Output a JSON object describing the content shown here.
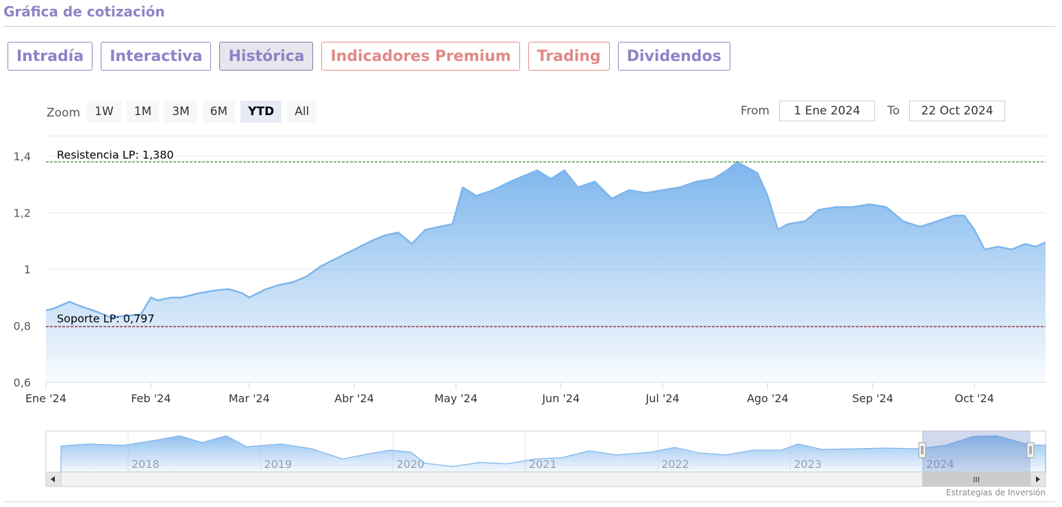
{
  "page": {
    "title": "Gráfica de cotización"
  },
  "tabs": [
    {
      "label": "Intradía",
      "active": false,
      "premium": false
    },
    {
      "label": "Interactiva",
      "active": false,
      "premium": false
    },
    {
      "label": "Histórica",
      "active": true,
      "premium": false
    },
    {
      "label": "Indicadores Premium",
      "active": false,
      "premium": true
    },
    {
      "label": "Trading",
      "active": false,
      "premium": true
    },
    {
      "label": "Dividendos",
      "active": false,
      "premium": false
    }
  ],
  "zoom": {
    "label": "Zoom",
    "buttons": [
      "1W",
      "1M",
      "3M",
      "6M",
      "YTD",
      "All"
    ],
    "selected": "YTD"
  },
  "range": {
    "from_label": "From",
    "from_value": "1 Ene 2024",
    "to_label": "To",
    "to_value": "22 Oct 2024"
  },
  "credits": "Estrategias de Inversión",
  "colors": {
    "line": "#7cb5ec",
    "resistance": "#2e8b2e",
    "support": "#8b1a2a",
    "accent": "#8c84c7",
    "premium": "#e08a86"
  },
  "chart_data": {
    "type": "area",
    "x_range": [
      "2024-01-01",
      "2024-10-22"
    ],
    "ylim": [
      0.6,
      1.4
    ],
    "yticks": [
      "0,6",
      "0,8",
      "1",
      "1,2",
      "1,4"
    ],
    "ytick_values": [
      0.6,
      0.8,
      1.0,
      1.2,
      1.4
    ],
    "xticks": [
      {
        "label": "Ene '24",
        "date": "2024-01-01"
      },
      {
        "label": "Feb '24",
        "date": "2024-02-01"
      },
      {
        "label": "Mar '24",
        "date": "2024-03-01"
      },
      {
        "label": "Abr '24",
        "date": "2024-04-01"
      },
      {
        "label": "May '24",
        "date": "2024-05-01"
      },
      {
        "label": "Jun '24",
        "date": "2024-06-01"
      },
      {
        "label": "Jul '24",
        "date": "2024-07-01"
      },
      {
        "label": "Ago '24",
        "date": "2024-08-01"
      },
      {
        "label": "Sep '24",
        "date": "2024-09-01"
      },
      {
        "label": "Oct '24",
        "date": "2024-10-01"
      }
    ],
    "series": [
      {
        "x": [
          "2024-01-01",
          "2024-01-03",
          "2024-01-08",
          "2024-01-11",
          "2024-01-16",
          "2024-01-20",
          "2024-01-24",
          "2024-01-29",
          "2024-02-01",
          "2024-02-03",
          "2024-02-07",
          "2024-02-10",
          "2024-02-15",
          "2024-02-20",
          "2024-02-24",
          "2024-02-28",
          "2024-03-01",
          "2024-03-06",
          "2024-03-10",
          "2024-03-14",
          "2024-03-18",
          "2024-03-22",
          "2024-03-27",
          "2024-04-01",
          "2024-04-06",
          "2024-04-10",
          "2024-04-14",
          "2024-04-18",
          "2024-04-22",
          "2024-04-26",
          "2024-04-30",
          "2024-05-03",
          "2024-05-07",
          "2024-05-12",
          "2024-05-17",
          "2024-05-21",
          "2024-05-25",
          "2024-05-29",
          "2024-06-02",
          "2024-06-06",
          "2024-06-11",
          "2024-06-16",
          "2024-06-21",
          "2024-06-26",
          "2024-07-01",
          "2024-07-06",
          "2024-07-11",
          "2024-07-16",
          "2024-07-20",
          "2024-07-23",
          "2024-07-26",
          "2024-07-29",
          "2024-08-01",
          "2024-08-04",
          "2024-08-07",
          "2024-08-12",
          "2024-08-16",
          "2024-08-21",
          "2024-08-26",
          "2024-08-31",
          "2024-09-05",
          "2024-09-10",
          "2024-09-15",
          "2024-09-20",
          "2024-09-25",
          "2024-09-28",
          "2024-10-01",
          "2024-10-04",
          "2024-10-08",
          "2024-10-12",
          "2024-10-16",
          "2024-10-19",
          "2024-10-22"
        ],
        "y": [
          0.855,
          0.86,
          0.885,
          0.87,
          0.85,
          0.83,
          0.835,
          0.84,
          0.9,
          0.89,
          0.9,
          0.9,
          0.915,
          0.925,
          0.93,
          0.915,
          0.9,
          0.93,
          0.945,
          0.955,
          0.975,
          1.01,
          1.04,
          1.07,
          1.1,
          1.12,
          1.13,
          1.09,
          1.14,
          1.15,
          1.16,
          1.29,
          1.26,
          1.28,
          1.31,
          1.33,
          1.35,
          1.32,
          1.35,
          1.29,
          1.31,
          1.25,
          1.28,
          1.27,
          1.28,
          1.29,
          1.31,
          1.32,
          1.35,
          1.38,
          1.36,
          1.34,
          1.26,
          1.14,
          1.16,
          1.17,
          1.21,
          1.22,
          1.22,
          1.23,
          1.22,
          1.17,
          1.15,
          1.17,
          1.19,
          1.19,
          1.14,
          1.07,
          1.08,
          1.07,
          1.09,
          1.08,
          1.095
        ]
      }
    ],
    "plot_lines": [
      {
        "label": "Resistencia LP: 1,380",
        "value": 1.38,
        "color": "#2e8b2e"
      },
      {
        "label": "Soporte LP: 0,797",
        "value": 0.797,
        "color": "#8b1a2a"
      }
    ],
    "navigator": {
      "year_labels": [
        "2018",
        "2019",
        "2020",
        "2021",
        "2022",
        "2023",
        "2024"
      ],
      "selected_range": [
        "2024-01-01",
        "2024-10-22"
      ],
      "scroll_grip": "III"
    }
  }
}
